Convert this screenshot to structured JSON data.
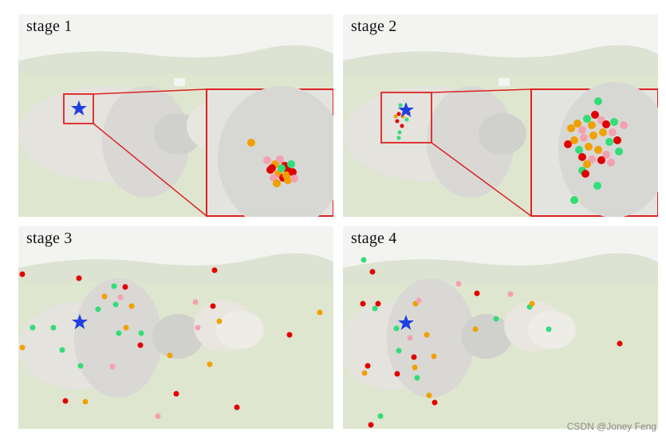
{
  "panels": [
    {
      "title": "stage 1"
    },
    {
      "title": "stage 2"
    },
    {
      "title": "stage 3"
    },
    {
      "title": "stage 4"
    }
  ],
  "colors": {
    "red": "#e00000",
    "orange": "#f0a000",
    "green": "#33dd77",
    "pink": "#f4a0b0",
    "star": "#1f3fe0",
    "zoom_box": "#dd2222"
  },
  "watermark": "CSDN @Joney Feng"
}
